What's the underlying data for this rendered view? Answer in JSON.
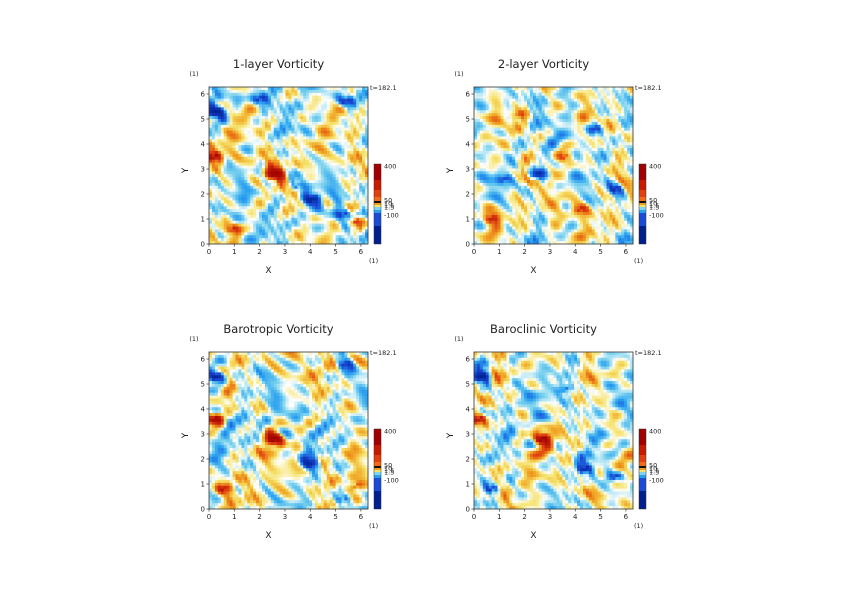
{
  "chart_data": [
    {
      "type": "heatmap",
      "title": "1-layer Vorticity",
      "time_label": "t=182.1",
      "xlabel": "X",
      "ylabel": "Y",
      "x_unit": "(1)",
      "y_unit": "(1)",
      "xlim": [
        0,
        6.28
      ],
      "ylim": [
        0,
        6.28
      ],
      "xticks": [
        "0",
        "1",
        "2",
        "3",
        "4",
        "5",
        "6"
      ],
      "yticks": [
        "0",
        "1",
        "2",
        "3",
        "4",
        "5",
        "6"
      ],
      "colorbar": {
        "ticks": [
          "400",
          "50",
          "10",
          "1.5",
          "1.5",
          "-100"
        ],
        "colors": [
          "#001f8f",
          "#1a4ad6",
          "#2aa0f0",
          "#7fd4ee",
          "#ffffff",
          "#f5e26a",
          "#f0a020",
          "#e04010",
          "#a00000"
        ]
      },
      "features": [
        {
          "x": 2.6,
          "y": 2.8,
          "sign": 1,
          "strength": 1.0
        },
        {
          "x": 0.3,
          "y": 5.3,
          "sign": -1,
          "strength": 1.0
        },
        {
          "x": 0.2,
          "y": 3.5,
          "sign": 1,
          "strength": 0.8
        },
        {
          "x": 4.1,
          "y": 1.8,
          "sign": -1,
          "strength": 0.9
        },
        {
          "x": 5.3,
          "y": 1.2,
          "sign": -1,
          "strength": 0.6
        },
        {
          "x": 5.8,
          "y": 0.9,
          "sign": 1,
          "strength": 0.6
        },
        {
          "x": 0.9,
          "y": 0.6,
          "sign": 1,
          "strength": 0.5
        },
        {
          "x": 5.4,
          "y": 5.7,
          "sign": -1,
          "strength": 0.6
        },
        {
          "x": 2.0,
          "y": 5.8,
          "sign": -1,
          "strength": 0.5
        },
        {
          "x": 3.5,
          "y": 2.3,
          "sign": -1,
          "strength": 0.5
        }
      ]
    },
    {
      "type": "heatmap",
      "title": "2-layer Vorticity",
      "time_label": "t=182.1",
      "xlabel": "X",
      "ylabel": "Y",
      "x_unit": "(1)",
      "y_unit": "(1)",
      "xlim": [
        0,
        6.28
      ],
      "ylim": [
        0,
        6.28
      ],
      "xticks": [
        "0",
        "1",
        "2",
        "3",
        "4",
        "5",
        "6"
      ],
      "yticks": [
        "0",
        "1",
        "2",
        "3",
        "4",
        "5",
        "6"
      ],
      "colorbar": {
        "ticks": [
          "400",
          "50",
          "10",
          "1.5",
          "1.5",
          "-100"
        ],
        "colors": [
          "#001f8f",
          "#1a4ad6",
          "#2aa0f0",
          "#7fd4ee",
          "#ffffff",
          "#f5e26a",
          "#f0a020",
          "#e04010",
          "#a00000"
        ]
      },
      "features": [
        {
          "x": 2.5,
          "y": 2.8,
          "sign": -1,
          "strength": 0.7
        },
        {
          "x": 0.7,
          "y": 1.0,
          "sign": 1,
          "strength": 0.6
        },
        {
          "x": 3.6,
          "y": 3.5,
          "sign": 1,
          "strength": 0.4
        },
        {
          "x": 4.8,
          "y": 4.6,
          "sign": -1,
          "strength": 0.4
        },
        {
          "x": 1.8,
          "y": 5.2,
          "sign": 1,
          "strength": 0.4
        },
        {
          "x": 5.6,
          "y": 2.2,
          "sign": -1,
          "strength": 0.5
        },
        {
          "x": 4.2,
          "y": 1.4,
          "sign": 1,
          "strength": 0.4
        },
        {
          "x": 1.2,
          "y": 2.6,
          "sign": -1,
          "strength": 0.4
        }
      ]
    },
    {
      "type": "heatmap",
      "title": "Barotropic Vorticity",
      "time_label": "t=182.1",
      "xlabel": "X",
      "ylabel": "Y",
      "x_unit": "(1)",
      "y_unit": "(1)",
      "xlim": [
        0,
        6.28
      ],
      "ylim": [
        0,
        6.28
      ],
      "xticks": [
        "0",
        "1",
        "2",
        "3",
        "4",
        "5",
        "6"
      ],
      "yticks": [
        "0",
        "1",
        "2",
        "3",
        "4",
        "5",
        "6"
      ],
      "colorbar": {
        "ticks": [
          "400",
          "50",
          "10",
          "1.5",
          "1.5",
          "-100"
        ],
        "colors": [
          "#001f8f",
          "#1a4ad6",
          "#2aa0f0",
          "#7fd4ee",
          "#ffffff",
          "#f5e26a",
          "#f0a020",
          "#e04010",
          "#a00000"
        ]
      },
      "features": [
        {
          "x": 2.6,
          "y": 2.8,
          "sign": 1,
          "strength": 1.0
        },
        {
          "x": 0.3,
          "y": 5.3,
          "sign": -1,
          "strength": 0.9
        },
        {
          "x": 0.2,
          "y": 3.6,
          "sign": 1,
          "strength": 0.8
        },
        {
          "x": 4.0,
          "y": 1.8,
          "sign": -1,
          "strength": 0.6
        },
        {
          "x": 5.3,
          "y": 0.4,
          "sign": -1,
          "strength": 0.6
        },
        {
          "x": 5.8,
          "y": 0.9,
          "sign": 1,
          "strength": 0.5
        },
        {
          "x": 0.6,
          "y": 0.8,
          "sign": 1,
          "strength": 0.5
        },
        {
          "x": 5.4,
          "y": 5.8,
          "sign": -1,
          "strength": 0.5
        }
      ]
    },
    {
      "type": "heatmap",
      "title": "Baroclinic Vorticity",
      "time_label": "t=182.1",
      "xlabel": "X",
      "ylabel": "Y",
      "x_unit": "(1)",
      "y_unit": "(1)",
      "xlim": [
        0,
        6.28
      ],
      "ylim": [
        0,
        6.28
      ],
      "xticks": [
        "0",
        "1",
        "2",
        "3",
        "4",
        "5",
        "6"
      ],
      "yticks": [
        "0",
        "1",
        "2",
        "3",
        "4",
        "5",
        "6"
      ],
      "colorbar": {
        "ticks": [
          "400",
          "50",
          "10",
          "1.5",
          "1.5",
          "-100"
        ],
        "colors": [
          "#001f8f",
          "#1a4ad6",
          "#2aa0f0",
          "#7fd4ee",
          "#ffffff",
          "#f5e26a",
          "#f0a020",
          "#e04010",
          "#a00000"
        ]
      },
      "features": [
        {
          "x": 2.7,
          "y": 2.8,
          "sign": 1,
          "strength": 1.0
        },
        {
          "x": 0.3,
          "y": 5.3,
          "sign": -1,
          "strength": 1.0
        },
        {
          "x": 0.2,
          "y": 3.6,
          "sign": 1,
          "strength": 0.7
        },
        {
          "x": 4.4,
          "y": 1.6,
          "sign": -1,
          "strength": 0.8
        },
        {
          "x": 0.7,
          "y": 0.8,
          "sign": -1,
          "strength": 0.6
        },
        {
          "x": 5.6,
          "y": 1.3,
          "sign": -1,
          "strength": 0.5
        },
        {
          "x": 3.6,
          "y": 4.8,
          "sign": -1,
          "strength": 0.5
        }
      ]
    }
  ]
}
